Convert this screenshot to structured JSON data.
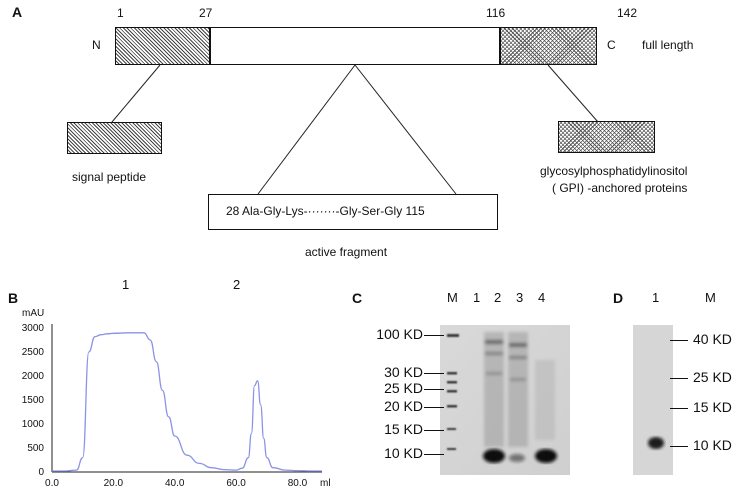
{
  "panel_a": {
    "letter": "A",
    "pos_1": "1",
    "pos_27": "27",
    "pos_116": "116",
    "pos_142": "142",
    "n_term": "N",
    "c_term": "C",
    "full_length": "full length",
    "signal_peptide": "signal peptide",
    "gpi_line1": "glycosylphosphatidylinositol",
    "gpi_line2": "( GPI) -anchored proteins",
    "active_seq": "28 Ala-Gly-Lys-·······-Gly-Ser-Gly 115",
    "active_fragment": "active fragment"
  },
  "panel_b": {
    "letter": "B",
    "peak_1": "1",
    "peak_2": "2",
    "y_unit": "mAU",
    "x_unit": "ml",
    "line_color": "#8a93e6"
  },
  "chart_data": {
    "type": "line",
    "title": "",
    "xlabel": "ml",
    "ylabel": "mAU",
    "xlim": [
      0,
      88
    ],
    "ylim": [
      0,
      3000
    ],
    "x_ticks": [
      "0.0",
      "20.0",
      "40.0",
      "60.0",
      "80.0"
    ],
    "y_ticks": [
      "0",
      "500",
      "1000",
      "1500",
      "2000",
      "2500",
      "3000"
    ],
    "grid": false,
    "x": [
      0,
      4,
      8,
      10,
      12,
      14,
      16,
      18,
      20,
      25,
      30,
      32,
      34,
      36,
      38,
      40,
      44,
      48,
      52,
      56,
      60,
      62,
      64,
      65,
      66,
      67,
      68,
      69,
      70,
      72,
      76,
      80,
      84,
      88
    ],
    "y": [
      20,
      20,
      40,
      300,
      2500,
      2820,
      2860,
      2880,
      2890,
      2900,
      2900,
      2750,
      2300,
      1700,
      1150,
      750,
      350,
      180,
      90,
      50,
      40,
      80,
      300,
      800,
      1800,
      1900,
      1400,
      700,
      300,
      90,
      40,
      30,
      20,
      20
    ]
  },
  "panel_c": {
    "letter": "C",
    "lanes": [
      "M",
      "1",
      "2",
      "3",
      "4"
    ],
    "markers": [
      "100 KD",
      "30 KD",
      "25 KD",
      "20 KD",
      "15 KD",
      "10 KD"
    ]
  },
  "panel_d": {
    "letter": "D",
    "lanes": [
      "1",
      "M"
    ],
    "markers": [
      "40 KD",
      "25 KD",
      "15 KD",
      "10 KD"
    ]
  }
}
